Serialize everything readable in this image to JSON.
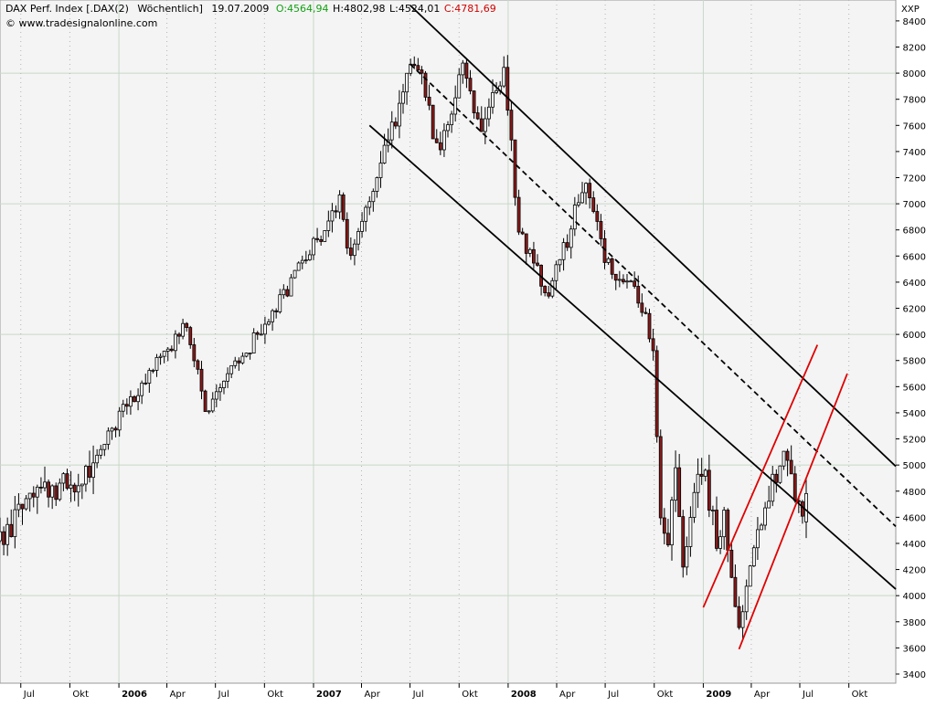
{
  "header": {
    "instrument": "DAX Perf. Index [.DAX(2)",
    "period": "Wöchentlich]",
    "date": "19.07.2009",
    "open_label": "O:",
    "open": "4564,94",
    "high_label": "H:",
    "high": "4802,98",
    "low_label": "L:",
    "low": "4524,01",
    "close_label": "C:",
    "close": "4781,69",
    "copyright": "© www.tradesignalonline.com",
    "open_color": "#12a012",
    "close_color": "#d00000"
  },
  "chart_data": {
    "type": "candlestick",
    "period": "weekly",
    "y_axis_label": "XXP",
    "y_axis_side": "right",
    "ylim": [
      3330,
      8560
    ],
    "y_ticks": [
      3400,
      3600,
      3800,
      4000,
      4200,
      4400,
      4600,
      4800,
      5000,
      5200,
      5400,
      5600,
      5800,
      6000,
      6200,
      6400,
      6600,
      6800,
      7000,
      7200,
      7400,
      7600,
      7800,
      8000,
      8200,
      8400
    ],
    "y_tick_labels": [
      "3400",
      "3600",
      "3800",
      "4000",
      "4200",
      "4400",
      "4600",
      "4800",
      "5000",
      "5200",
      "5400",
      "5600",
      "5800",
      "6000",
      "6200",
      "6400",
      "6600",
      "6800",
      "7000",
      "7200",
      "7400",
      "7600",
      "7800",
      "8000",
      "8200",
      "8400"
    ],
    "major_h_gridlines": [
      4000,
      5000,
      6000,
      7000,
      8000
    ],
    "x_range": [
      "2005-05-23",
      "2009-12-28"
    ],
    "x_ticks": [
      {
        "date": "2005-07-01",
        "label": "Jul",
        "major": false
      },
      {
        "date": "2005-10-01",
        "label": "Okt",
        "major": false
      },
      {
        "date": "2006-01-01",
        "label": "2006",
        "major": true
      },
      {
        "date": "2006-04-01",
        "label": "Apr",
        "major": false
      },
      {
        "date": "2006-07-01",
        "label": "Jul",
        "major": false
      },
      {
        "date": "2006-10-01",
        "label": "Okt",
        "major": false
      },
      {
        "date": "2007-01-01",
        "label": "2007",
        "major": true
      },
      {
        "date": "2007-04-01",
        "label": "Apr",
        "major": false
      },
      {
        "date": "2007-07-01",
        "label": "Jul",
        "major": false
      },
      {
        "date": "2007-10-01",
        "label": "Okt",
        "major": false
      },
      {
        "date": "2008-01-01",
        "label": "2008",
        "major": true
      },
      {
        "date": "2008-04-01",
        "label": "Apr",
        "major": false
      },
      {
        "date": "2008-07-01",
        "label": "Jul",
        "major": false
      },
      {
        "date": "2008-10-01",
        "label": "Okt",
        "major": false
      },
      {
        "date": "2009-01-01",
        "label": "2009",
        "major": true
      },
      {
        "date": "2009-04-01",
        "label": "Apr",
        "major": false
      },
      {
        "date": "2009-07-01",
        "label": "Jul",
        "major": false
      },
      {
        "date": "2009-10-01",
        "label": "Okt",
        "major": false
      }
    ],
    "grid": true,
    "colors": {
      "up_candle": "#ffffff",
      "down_candle": "#8b1a1a",
      "candle_outline": "#000000",
      "channel_black": "#000000",
      "channel_red": "#e00000",
      "background": "#f4f4f4",
      "grid": "#c8d8c8"
    },
    "anchors": [
      [
        "2005-05-23",
        4420
      ],
      [
        "2005-08-08",
        4850
      ],
      [
        "2005-10-24",
        4830
      ],
      [
        "2006-01-09",
        5420
      ],
      [
        "2006-05-08",
        6100
      ],
      [
        "2006-06-12",
        5430
      ],
      [
        "2006-08-14",
        5780
      ],
      [
        "2006-11-20",
        6400
      ],
      [
        "2007-02-19",
        7000
      ],
      [
        "2007-03-12",
        6580
      ],
      [
        "2007-06-25",
        7950
      ],
      [
        "2007-07-16",
        8100
      ],
      [
        "2007-08-20",
        7400
      ],
      [
        "2007-10-08",
        8000
      ],
      [
        "2007-11-12",
        7600
      ],
      [
        "2007-12-24",
        8050
      ],
      [
        "2008-01-21",
        6800
      ],
      [
        "2008-03-17",
        6300
      ],
      [
        "2008-05-26",
        7180
      ],
      [
        "2008-07-14",
        6400
      ],
      [
        "2008-08-25",
        6400
      ],
      [
        "2008-09-29",
        5900
      ],
      [
        "2008-10-13",
        4550
      ],
      [
        "2008-10-27",
        4400
      ],
      [
        "2008-11-10",
        4950
      ],
      [
        "2008-11-24",
        4300
      ],
      [
        "2008-12-15",
        4820
      ],
      [
        "2009-01-05",
        4900
      ],
      [
        "2009-01-26",
        4450
      ],
      [
        "2009-02-09",
        4650
      ],
      [
        "2009-03-02",
        3850
      ],
      [
        "2009-03-09",
        3700
      ],
      [
        "2009-04-13",
        4500
      ],
      [
        "2009-05-11",
        4850
      ],
      [
        "2009-06-01",
        5080
      ],
      [
        "2009-06-22",
        4800
      ],
      [
        "2009-07-06",
        4575
      ],
      [
        "2009-07-13",
        4781.69
      ]
    ],
    "trend_lines": [
      {
        "name": "black-channel-upper",
        "color": "#000000",
        "dash": false,
        "points": [
          [
            "2007-07-01",
            8520
          ],
          [
            "2009-12-28",
            4990
          ]
        ]
      },
      {
        "name": "black-channel-mid",
        "color": "#000000",
        "dash": true,
        "points": [
          [
            "2007-07-01",
            8070
          ],
          [
            "2009-12-28",
            4530
          ]
        ]
      },
      {
        "name": "black-channel-lower",
        "color": "#000000",
        "dash": false,
        "points": [
          [
            "2007-04-16",
            7600
          ],
          [
            "2009-12-28",
            4050
          ]
        ]
      },
      {
        "name": "red-channel-upper",
        "color": "#e00000",
        "dash": false,
        "points": [
          [
            "2009-01-01",
            3910
          ],
          [
            "2009-08-03",
            5920
          ]
        ]
      },
      {
        "name": "red-channel-lower",
        "color": "#e00000",
        "dash": false,
        "points": [
          [
            "2009-03-09",
            3590
          ],
          [
            "2009-09-28",
            5700
          ]
        ]
      }
    ]
  }
}
